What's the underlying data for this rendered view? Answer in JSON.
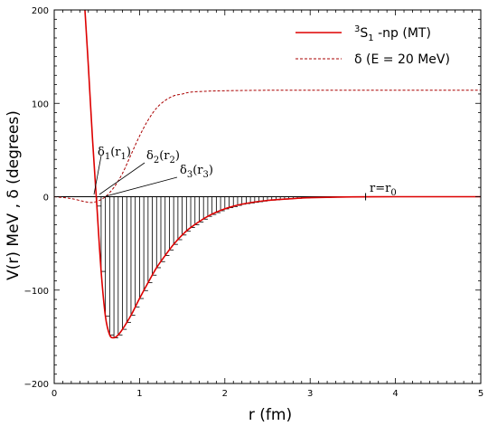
{
  "chart_data": {
    "type": "line",
    "title": "",
    "xlabel": "r (fm)",
    "ylabel": "V(r) MeV , δ (degrees)",
    "xlim": [
      0,
      5
    ],
    "ylim": [
      -200,
      200
    ],
    "x_ticks": [
      0,
      1,
      2,
      3,
      4,
      5
    ],
    "y_ticks": [
      -200,
      -100,
      0,
      100,
      200
    ],
    "x_tick_labels": [
      "0",
      "1",
      "2",
      "3",
      "4",
      "5"
    ],
    "y_tick_labels": [
      "−200",
      "−100",
      "0",
      "100",
      "200"
    ],
    "legend_position": "top-right",
    "grid": false,
    "series": [
      {
        "name": "³S₁ -np (MT)",
        "legend_main": "S",
        "legend_sup": "3",
        "legend_sub": "1",
        "legend_rest": " -np (MT)",
        "color": "#dd0000",
        "style": "solid",
        "x": [
          0.36,
          0.4,
          0.45,
          0.5,
          0.55,
          0.6,
          0.65,
          0.7,
          0.75,
          0.8,
          0.9,
          1.0,
          1.1,
          1.2,
          1.3,
          1.4,
          1.5,
          1.6,
          1.8,
          2.0,
          2.2,
          2.5,
          2.8,
          3.0,
          3.5,
          4.0,
          4.5,
          5.0
        ],
        "y": [
          200,
          140,
          60,
          -10,
          -80,
          -128,
          -148,
          -151,
          -148,
          -142,
          -127,
          -109,
          -92,
          -76,
          -63,
          -51,
          -41,
          -33,
          -21,
          -13,
          -8,
          -4,
          -2,
          -1,
          -0.2,
          0,
          0,
          0
        ]
      },
      {
        "name": "δ (E = 20 MeV)",
        "color": "#aa0000",
        "style": "dashed",
        "x": [
          0,
          0.2,
          0.4,
          0.5,
          0.6,
          0.7,
          0.8,
          0.9,
          1.0,
          1.1,
          1.2,
          1.3,
          1.4,
          1.5,
          1.6,
          1.8,
          2.0,
          2.5,
          3.0,
          4.0,
          5.0
        ],
        "y": [
          0,
          -2,
          -6,
          -5,
          0,
          10,
          25,
          45,
          65,
          82,
          95,
          103,
          108,
          110,
          112,
          113,
          113.5,
          114,
          114,
          114,
          114
        ]
      }
    ],
    "bars": {
      "x_start": 0.45,
      "x_end": 3.65,
      "step": 0.05,
      "color": "#000000"
    },
    "annotations": [
      {
        "main": "δ",
        "sub": "1",
        "paren_main": "r",
        "paren_sub": "1",
        "text": "δ1(r1)",
        "target_x": 0.47,
        "target_y": 0
      },
      {
        "main": "δ",
        "sub": "2",
        "paren_main": "r",
        "paren_sub": "2",
        "text": "δ2(r2)",
        "target_x": 0.53,
        "target_y": 0
      },
      {
        "main": "δ",
        "sub": "3",
        "paren_main": "r",
        "paren_sub": "3",
        "text": "δ3(r3)",
        "target_x": 0.58,
        "target_y": 0
      },
      {
        "main": "r=r",
        "sub": "0",
        "text": "r=r0",
        "target_x": 3.65,
        "target_y": 0
      }
    ]
  }
}
